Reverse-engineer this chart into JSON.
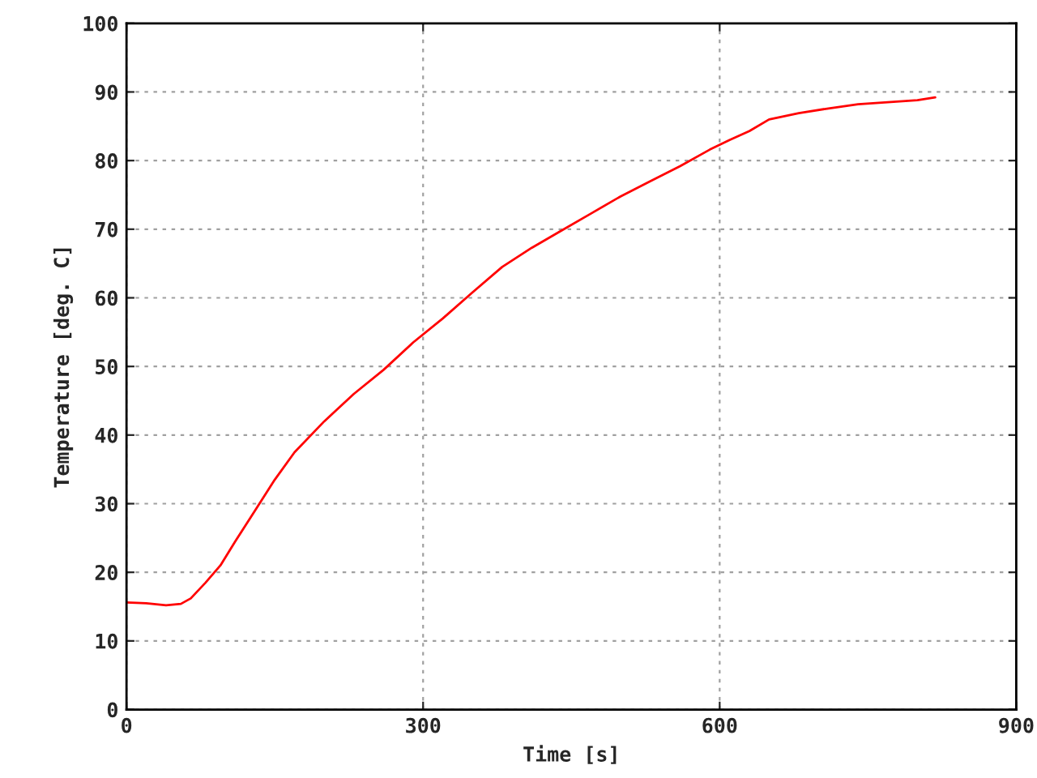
{
  "chart_data": {
    "type": "line",
    "xlabel": "Time [s]",
    "ylabel": "Temperature [deg. C]",
    "x": [
      0,
      20,
      40,
      55,
      65,
      80,
      95,
      110,
      130,
      150,
      170,
      200,
      230,
      260,
      290,
      320,
      350,
      380,
      410,
      440,
      470,
      500,
      530,
      560,
      590,
      610,
      630,
      650,
      680,
      710,
      740,
      770,
      800,
      818
    ],
    "series": [
      {
        "color": "#ff0000",
        "values": [
          15.6,
          15.5,
          15.2,
          15.4,
          16.2,
          18.5,
          21,
          24.5,
          29,
          33.5,
          37.5,
          42,
          46,
          49.5,
          53.5,
          57,
          60.8,
          64.5,
          67.3,
          69.8,
          72.3,
          74.8,
          77,
          79.2,
          81.6,
          83,
          84.3,
          86,
          86.9,
          87.6,
          88.2,
          88.5,
          88.8,
          89.2
        ]
      }
    ],
    "xlim": [
      0,
      900
    ],
    "xticks": [
      0,
      300,
      600,
      900
    ],
    "ylim": [
      0,
      100
    ],
    "yticks": [
      0,
      10,
      20,
      30,
      40,
      50,
      60,
      70,
      80,
      90,
      100
    ],
    "grid": true,
    "marker": "none",
    "line_style": "solid"
  }
}
